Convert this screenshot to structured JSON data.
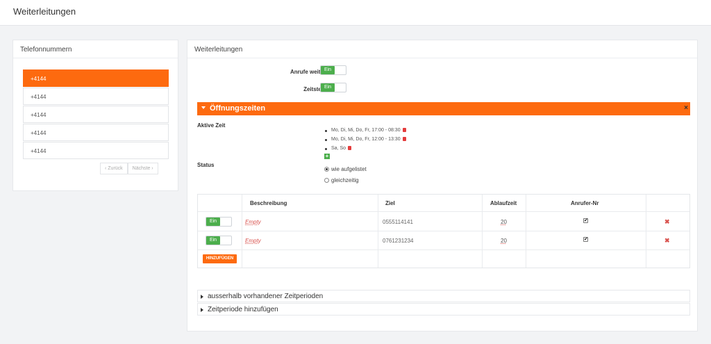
{
  "header": {
    "title": "Weiterleitungen"
  },
  "left_panel": {
    "title": "Telefonnummern",
    "phones": [
      "+4144",
      "+4144",
      "+4144",
      "+4144",
      "+4144"
    ],
    "pager": {
      "prev": "‹ Zurück",
      "next": "Nächste ›"
    }
  },
  "right_panel": {
    "title": "Weiterleitungen",
    "forward_calls": {
      "label": "Anrufe weiterleiten",
      "toggle": "Ein"
    },
    "time_control": {
      "label": "Zeitsteuerung",
      "toggle": "Ein"
    },
    "section": {
      "title": "Öffnungszeiten",
      "close": "×",
      "active_time_label": "Aktive Zeit",
      "active_times": [
        "Mo, Di, Mi, Do, Fr, 17:00 - 08:30",
        "Mo, Di, Mi, Do, Fr, 12:00 - 13:30",
        "Sa, So"
      ],
      "add_time": "+",
      "status_label": "Status",
      "status_options": [
        "wie aufgelistet",
        "gleichzeitig"
      ]
    },
    "table": {
      "headers": [
        "Beschreibung",
        "Ziel",
        "Ablaufzeit",
        "Anrufer-Nr"
      ],
      "rows": [
        {
          "toggle": "Ein",
          "description": "Empty",
          "target": "0555114141",
          "timeout": "20",
          "caller_id": "✔",
          "delete": "✖"
        },
        {
          "toggle": "Ein",
          "description": "Empty",
          "target": "0761231234",
          "timeout": "20",
          "caller_id": "✔",
          "delete": "✖"
        }
      ],
      "add_button": "HINZUFÜGEN"
    },
    "collapsibles": [
      "ausserhalb vorhandener Zeitperioden",
      "Zeitperiode hinzufügen"
    ]
  }
}
